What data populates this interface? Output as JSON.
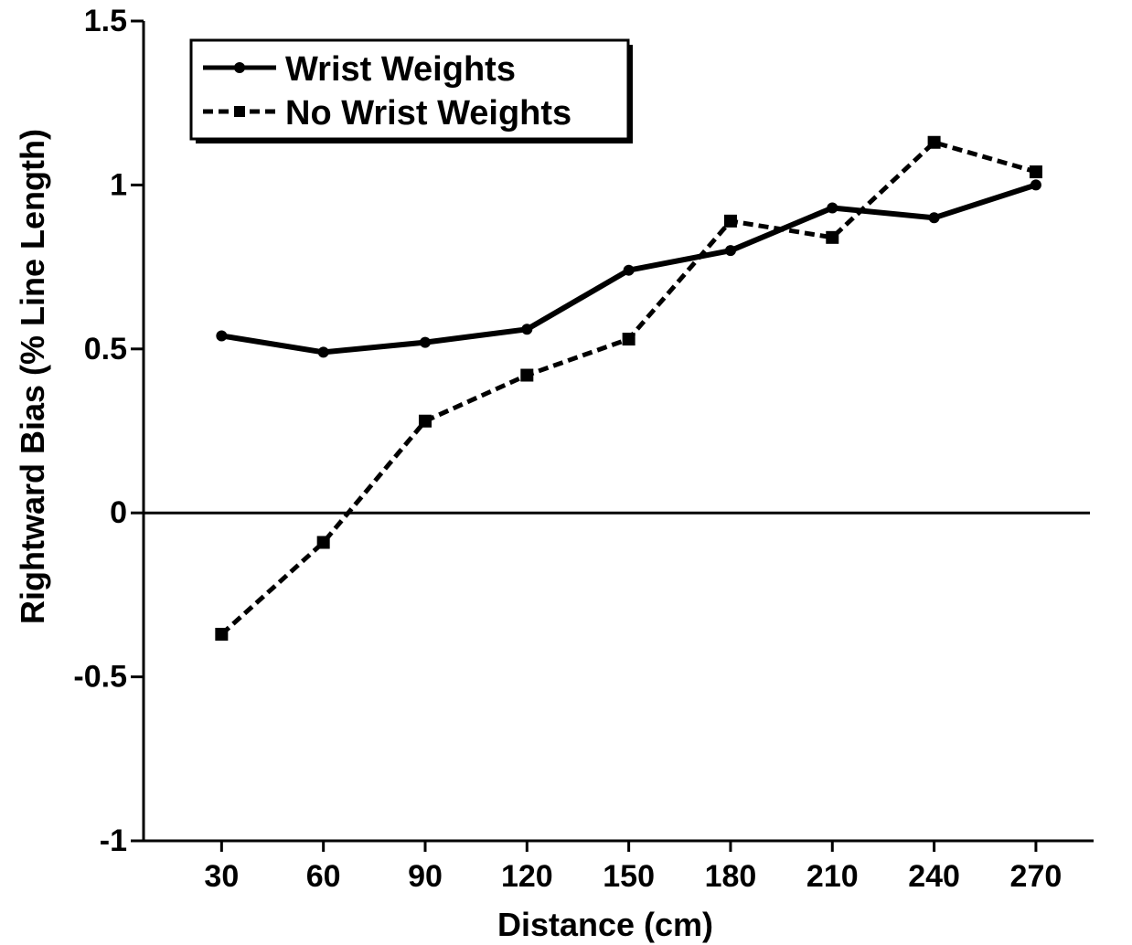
{
  "chart_data": {
    "type": "line",
    "title": "",
    "xlabel": "Distance (cm)",
    "ylabel": "Rightward Bias (% Line Length)",
    "x": [
      30,
      60,
      90,
      120,
      150,
      180,
      210,
      240,
      270
    ],
    "xlim": [
      7,
      287
    ],
    "ylim": [
      -1,
      1.5
    ],
    "yticks": [
      -1,
      -0.5,
      0,
      0.5,
      1,
      1.5
    ],
    "ytick_labels": [
      "-1",
      "-0.5",
      "0",
      "0.5",
      "1",
      "1.5"
    ],
    "xtick_labels": [
      "30",
      "60",
      "90",
      "120",
      "150",
      "180",
      "210",
      "240",
      "270"
    ],
    "zero_line": true,
    "grid": false,
    "legend_position": "top-left",
    "series": [
      {
        "name": "Wrist Weights",
        "values": [
          0.54,
          0.49,
          0.52,
          0.56,
          0.74,
          0.8,
          0.93,
          0.9,
          1.0
        ],
        "line_style": "solid",
        "marker": "circle",
        "color": "#000000"
      },
      {
        "name": "No Wrist Weights",
        "values": [
          -0.37,
          -0.09,
          0.28,
          0.42,
          0.53,
          0.89,
          0.84,
          1.13,
          1.04
        ],
        "line_style": "dashed",
        "marker": "square",
        "color": "#000000"
      }
    ]
  }
}
